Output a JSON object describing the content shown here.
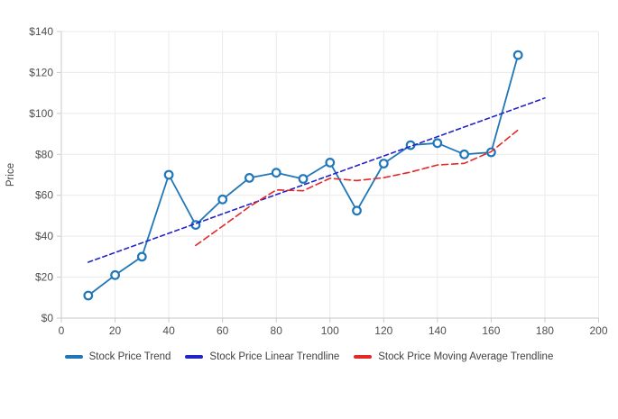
{
  "chart_data": {
    "type": "line",
    "title": "",
    "grid": true,
    "legend_position": "bottom",
    "x_axis": {
      "min": 0,
      "max": 200,
      "tick_values": [
        0,
        20,
        40,
        60,
        80,
        100,
        120,
        140,
        160,
        180,
        200
      ],
      "tick_labels": [
        "0",
        "20",
        "40",
        "60",
        "80",
        "100",
        "120",
        "140",
        "160",
        "180",
        "200"
      ]
    },
    "y_axis": {
      "title": "Price",
      "min": 0,
      "max": 140,
      "tick_values": [
        0,
        20,
        40,
        60,
        80,
        100,
        120,
        140
      ],
      "tick_labels": [
        "$0",
        "$20",
        "$40",
        "$60",
        "$80",
        "$100",
        "$120",
        "$140"
      ]
    },
    "series": [
      {
        "name": "Stock Price Trend",
        "style": "solid",
        "markers": true,
        "color": "#2077B8",
        "x": [
          10,
          20,
          30,
          40,
          50,
          60,
          70,
          80,
          90,
          100,
          110,
          120,
          130,
          140,
          150,
          160,
          170
        ],
        "values": [
          11,
          21,
          30,
          70,
          45.5,
          58,
          68.5,
          71,
          68,
          76,
          52.5,
          75.5,
          84.5,
          85.5,
          80,
          81,
          128.5
        ]
      },
      {
        "name": "Stock Price Linear Trendline",
        "style": "dashed",
        "markers": false,
        "color": "#2323CC",
        "x": [
          10,
          180
        ],
        "values": [
          27.3,
          107.5
        ]
      },
      {
        "name": "Stock Price Moving Average Trendline",
        "style": "dashed",
        "markers": false,
        "color": "#E52727",
        "x": [
          50,
          60,
          70,
          80,
          90,
          100,
          110,
          120,
          130,
          140,
          150,
          160,
          170
        ],
        "values": [
          35.5,
          44.9,
          54.4,
          62.6,
          62.2,
          68.3,
          67.2,
          68.6,
          71.3,
          74.8,
          75.6,
          81.3,
          91.9
        ]
      }
    ]
  },
  "colors": {
    "grid": "#EAEAEA",
    "axis": "#C9C9C9",
    "tick": "#CCCCCC",
    "tick_text": "#4F4F4F",
    "axis_title_text": "#444444",
    "legend_text": "#3F3F3F",
    "marker_fill": "#FFFFFF",
    "background": "#FFFFFF"
  }
}
